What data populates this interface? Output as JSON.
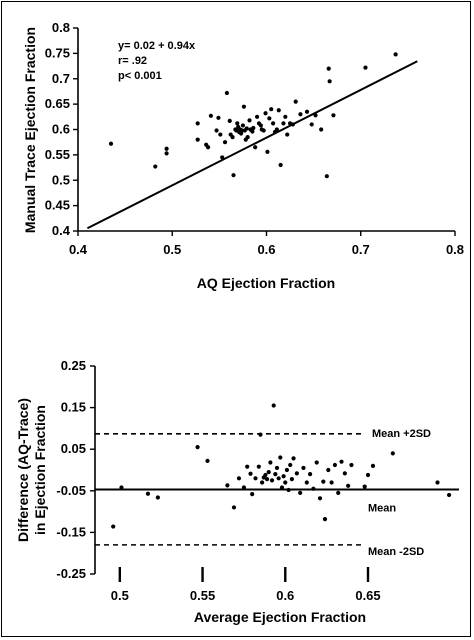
{
  "chart_data": [
    {
      "type": "scatter",
      "title": "",
      "xlabel": "AQ Ejection Fraction",
      "ylabel": "Manual Trace Ejection Fraction",
      "xlim": [
        0.4,
        0.8
      ],
      "ylim": [
        0.4,
        0.8
      ],
      "x_ticks": [
        "0.4",
        "0.5",
        "0.6",
        "0.7",
        "0.8"
      ],
      "y_ticks": [
        "0.4",
        "0.45",
        "0.5",
        "0.55",
        "0.6",
        "0.65",
        "0.7",
        "0.75",
        "0.8"
      ],
      "annotations": [
        "y= 0.02 + 0.94x",
        "r= .92",
        "p< 0.001"
      ],
      "regression": {
        "intercept": 0.02,
        "slope": 0.94,
        "x_range": [
          0.41,
          0.76
        ]
      },
      "grid": false,
      "points": [
        [
          0.435,
          0.572
        ],
        [
          0.482,
          0.527
        ],
        [
          0.494,
          0.562
        ],
        [
          0.494,
          0.553
        ],
        [
          0.527,
          0.612
        ],
        [
          0.527,
          0.58
        ],
        [
          0.536,
          0.57
        ],
        [
          0.538,
          0.565
        ],
        [
          0.541,
          0.627
        ],
        [
          0.547,
          0.598
        ],
        [
          0.549,
          0.623
        ],
        [
          0.551,
          0.59
        ],
        [
          0.553,
          0.545
        ],
        [
          0.556,
          0.575
        ],
        [
          0.558,
          0.672
        ],
        [
          0.561,
          0.617
        ],
        [
          0.562,
          0.59
        ],
        [
          0.564,
          0.585
        ],
        [
          0.565,
          0.51
        ],
        [
          0.567,
          0.6
        ],
        [
          0.568,
          0.598
        ],
        [
          0.569,
          0.612
        ],
        [
          0.57,
          0.605
        ],
        [
          0.571,
          0.595
        ],
        [
          0.572,
          0.6
        ],
        [
          0.573,
          0.592
        ],
        [
          0.574,
          0.598
        ],
        [
          0.575,
          0.608
        ],
        [
          0.576,
          0.645
        ],
        [
          0.577,
          0.598
        ],
        [
          0.578,
          0.58
        ],
        [
          0.579,
          0.602
        ],
        [
          0.58,
          0.585
        ],
        [
          0.582,
          0.618
        ],
        [
          0.583,
          0.6
        ],
        [
          0.585,
          0.596
        ],
        [
          0.586,
          0.603
        ],
        [
          0.588,
          0.565
        ],
        [
          0.59,
          0.625
        ],
        [
          0.592,
          0.612
        ],
        [
          0.594,
          0.608
        ],
        [
          0.595,
          0.6
        ],
        [
          0.597,
          0.598
        ],
        [
          0.599,
          0.632
        ],
        [
          0.601,
          0.556
        ],
        [
          0.603,
          0.622
        ],
        [
          0.605,
          0.64
        ],
        [
          0.607,
          0.612
        ],
        [
          0.609,
          0.595
        ],
        [
          0.611,
          0.6
        ],
        [
          0.613,
          0.638
        ],
        [
          0.615,
          0.53
        ],
        [
          0.618,
          0.612
        ],
        [
          0.62,
          0.625
        ],
        [
          0.622,
          0.59
        ],
        [
          0.625,
          0.612
        ],
        [
          0.628,
          0.61
        ],
        [
          0.631,
          0.655
        ],
        [
          0.636,
          0.63
        ],
        [
          0.643,
          0.635
        ],
        [
          0.648,
          0.61
        ],
        [
          0.652,
          0.628
        ],
        [
          0.658,
          0.6
        ],
        [
          0.664,
          0.508
        ],
        [
          0.666,
          0.72
        ],
        [
          0.667,
          0.695
        ],
        [
          0.671,
          0.628
        ],
        [
          0.705,
          0.722
        ],
        [
          0.737,
          0.748
        ]
      ]
    },
    {
      "type": "scatter",
      "title": "",
      "xlabel": "Average Ejection Fraction",
      "ylabel": "Difference (AQ-Trace) in Ejection Fraction",
      "ylim": [
        -0.25,
        0.25
      ],
      "x_ticks": [
        "0.5",
        "0.55",
        "0.6",
        "0.65"
      ],
      "x_tick_values": [
        0.5,
        0.55,
        0.6,
        0.65
      ],
      "y_ticks": [
        "0.25",
        "0.15",
        "0.05",
        "-0.05",
        "-0.15",
        "-0.25"
      ],
      "reference_lines": [
        {
          "label": "Mean +2SD",
          "value": 0.087,
          "style": "dashed"
        },
        {
          "label": "Mean",
          "value": -0.047,
          "style": "solid"
        },
        {
          "label": "Mean -2SD",
          "value": -0.18,
          "style": "dashed"
        }
      ],
      "grid": false,
      "points": [
        [
          0.496,
          -0.136
        ],
        [
          0.501,
          -0.042
        ],
        [
          0.517,
          -0.057
        ],
        [
          0.523,
          -0.066
        ],
        [
          0.547,
          0.055
        ],
        [
          0.553,
          0.022
        ],
        [
          0.565,
          -0.037
        ],
        [
          0.569,
          -0.09
        ],
        [
          0.572,
          -0.02
        ],
        [
          0.575,
          -0.042
        ],
        [
          0.577,
          0.008
        ],
        [
          0.579,
          -0.009
        ],
        [
          0.58,
          -0.058
        ],
        [
          0.582,
          -0.02
        ],
        [
          0.584,
          0.008
        ],
        [
          0.585,
          0.085
        ],
        [
          0.586,
          -0.03
        ],
        [
          0.587,
          -0.018
        ],
        [
          0.588,
          -0.012
        ],
        [
          0.589,
          -0.022
        ],
        [
          0.59,
          -0.005
        ],
        [
          0.591,
          0.018
        ],
        [
          0.592,
          -0.025
        ],
        [
          0.593,
          0.155
        ],
        [
          0.594,
          -0.01
        ],
        [
          0.595,
          0.005
        ],
        [
          0.596,
          -0.02
        ],
        [
          0.597,
          0.03
        ],
        [
          0.598,
          -0.042
        ],
        [
          0.599,
          -0.015
        ],
        [
          0.6,
          -0.03
        ],
        [
          0.601,
          0.0
        ],
        [
          0.602,
          -0.048
        ],
        [
          0.603,
          0.012
        ],
        [
          0.604,
          -0.022
        ],
        [
          0.605,
          0.028
        ],
        [
          0.607,
          -0.008
        ],
        [
          0.609,
          -0.055
        ],
        [
          0.611,
          0.005
        ],
        [
          0.613,
          -0.03
        ],
        [
          0.615,
          -0.01
        ],
        [
          0.617,
          -0.045
        ],
        [
          0.619,
          0.018
        ],
        [
          0.621,
          -0.068
        ],
        [
          0.623,
          -0.028
        ],
        [
          0.624,
          -0.118
        ],
        [
          0.626,
          0.0
        ],
        [
          0.628,
          -0.03
        ],
        [
          0.63,
          0.012
        ],
        [
          0.632,
          -0.055
        ],
        [
          0.634,
          0.02
        ],
        [
          0.636,
          -0.008
        ],
        [
          0.638,
          -0.038
        ],
        [
          0.64,
          0.012
        ],
        [
          0.648,
          -0.04
        ],
        [
          0.65,
          -0.012
        ],
        [
          0.653,
          0.01
        ],
        [
          0.665,
          0.04
        ],
        [
          0.692,
          -0.03
        ],
        [
          0.699,
          -0.06
        ]
      ]
    }
  ]
}
